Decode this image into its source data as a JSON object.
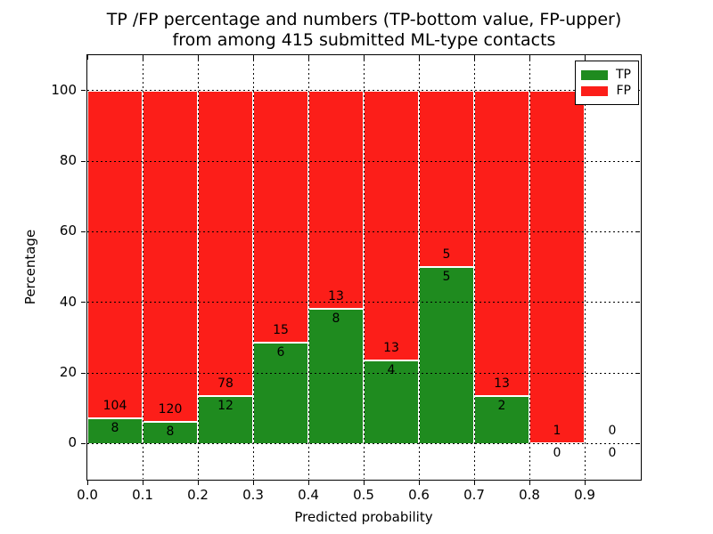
{
  "title": {
    "line1": "TP /FP percentage and numbers (TP-bottom value, FP-upper)",
    "line2": "from among 415 submitted ML-type contacts"
  },
  "axes": {
    "x_label": "Predicted probability",
    "y_label": "Percentage",
    "x_tick_labels": [
      "0.0",
      "0.1",
      "0.2",
      "0.3",
      "0.4",
      "0.5",
      "0.6",
      "0.7",
      "0.8",
      "0.9"
    ],
    "y_tick_labels": [
      "0",
      "20",
      "40",
      "60",
      "80",
      "100"
    ]
  },
  "legend": {
    "entries": [
      {
        "label": "TP",
        "color": "#1f8b1f"
      },
      {
        "label": "FP",
        "color": "#fc1e19"
      }
    ],
    "position": "upper right"
  },
  "colors": {
    "tp_green": "#1f8b1f",
    "fp_red": "#fc1e19",
    "frame": "#000000",
    "background": "#ffffff"
  },
  "chart_data": {
    "type": "bar",
    "stacked": true,
    "normalized_to_percent": true,
    "title": "TP /FP percentage and numbers (TP-bottom value, FP-upper) from among 415 submitted ML-type contacts",
    "xlabel": "Predicted probability",
    "ylabel": "Percentage",
    "total_contacts": 415,
    "x_bin_edges": [
      0.0,
      0.1,
      0.2,
      0.3,
      0.4,
      0.5,
      0.6,
      0.7,
      0.8,
      0.9,
      1.0
    ],
    "x_ticks": [
      0.0,
      0.1,
      0.2,
      0.3,
      0.4,
      0.5,
      0.6,
      0.7,
      0.8,
      0.9
    ],
    "y_ticks": [
      0,
      20,
      40,
      60,
      80,
      100
    ],
    "xlim": [
      0.0,
      1.0
    ],
    "ylim": [
      -10,
      110
    ],
    "grid": true,
    "grid_style": "dotted",
    "legend_position": "upper right",
    "series": [
      {
        "name": "TP",
        "color": "#1f8b1f",
        "counts": [
          8,
          8,
          12,
          6,
          8,
          4,
          5,
          2,
          0,
          0
        ]
      },
      {
        "name": "FP",
        "color": "#fc1e19",
        "counts": [
          104,
          120,
          78,
          15,
          13,
          13,
          5,
          13,
          1,
          0
        ]
      }
    ],
    "tp_percent_heights": [
      7.1,
      6.3,
      13.3,
      28.6,
      38.1,
      23.5,
      50.0,
      13.3,
      0.0,
      0.0
    ],
    "fp_percent_heights": [
      92.9,
      93.8,
      86.7,
      71.4,
      61.9,
      76.5,
      50.0,
      86.7,
      100.0,
      0.0
    ]
  }
}
